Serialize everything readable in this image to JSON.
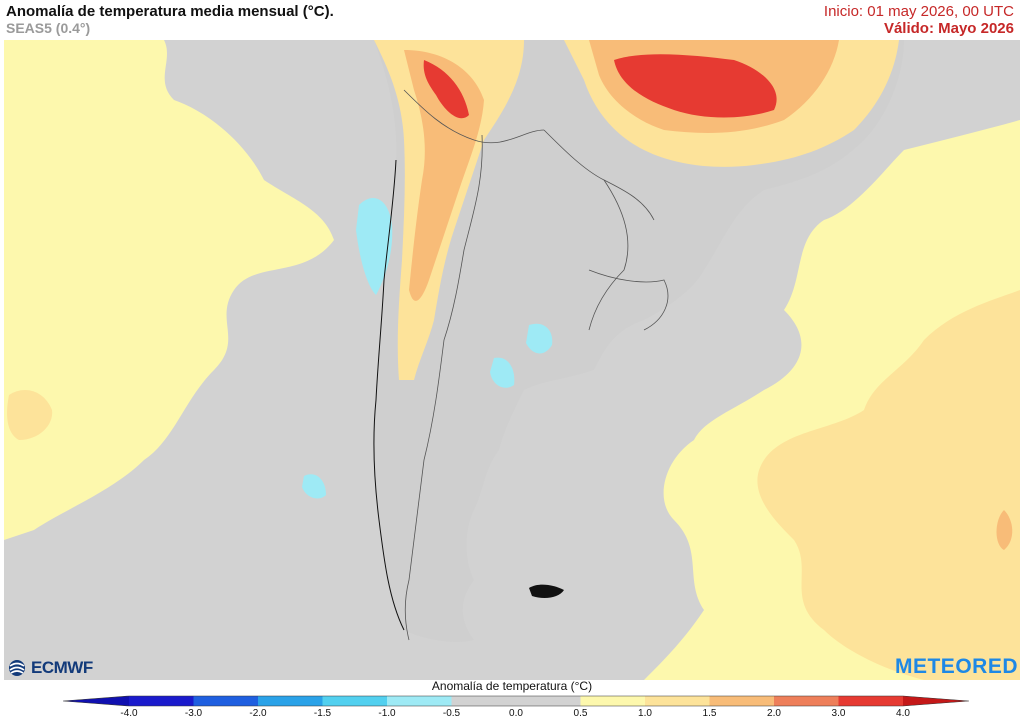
{
  "header": {
    "title": "Anomalía de temperatura media mensual (°C).",
    "subtitle": "SEAS5 (0.4°)",
    "init": "Inicio: 01 may 2026, 00 UTC",
    "valid": "Válido: Mayo 2026"
  },
  "logos": {
    "left": "ECMWF",
    "right": "METEORED",
    "left_icon": "ecmwf-logo-icon"
  },
  "legend": {
    "title": "Anomalía de temperatura (°C)",
    "ticks": [
      "-4.0",
      "-3.0",
      "-2.0",
      "-1.5",
      "-1.0",
      "-0.5",
      "0.0",
      "0.5",
      "1.0",
      "1.5",
      "2.0",
      "3.0",
      "4.0"
    ],
    "colors": [
      "#1a1acc",
      "#1f5fe0",
      "#2aa2e8",
      "#52d0ef",
      "#9eeaf5",
      "#d2d2d2",
      "#d2d2d2",
      "#fdf8ad",
      "#fde39a",
      "#f8bc78",
      "#ee7f5a",
      "#e63a32"
    ],
    "end_low": "#1010b0",
    "end_high": "#c41818"
  },
  "map_colors": {
    "ocean_neutral": "#d2d2d2",
    "light_warm": "#fdf8ad",
    "warm": "#fde39a",
    "warmer": "#f8bc78",
    "hot": "#ee7f5a",
    "hottest": "#e63a32",
    "cool": "#9eeaf5",
    "land": "#cfcfcf",
    "border": "#555555",
    "coast": "#111111"
  }
}
